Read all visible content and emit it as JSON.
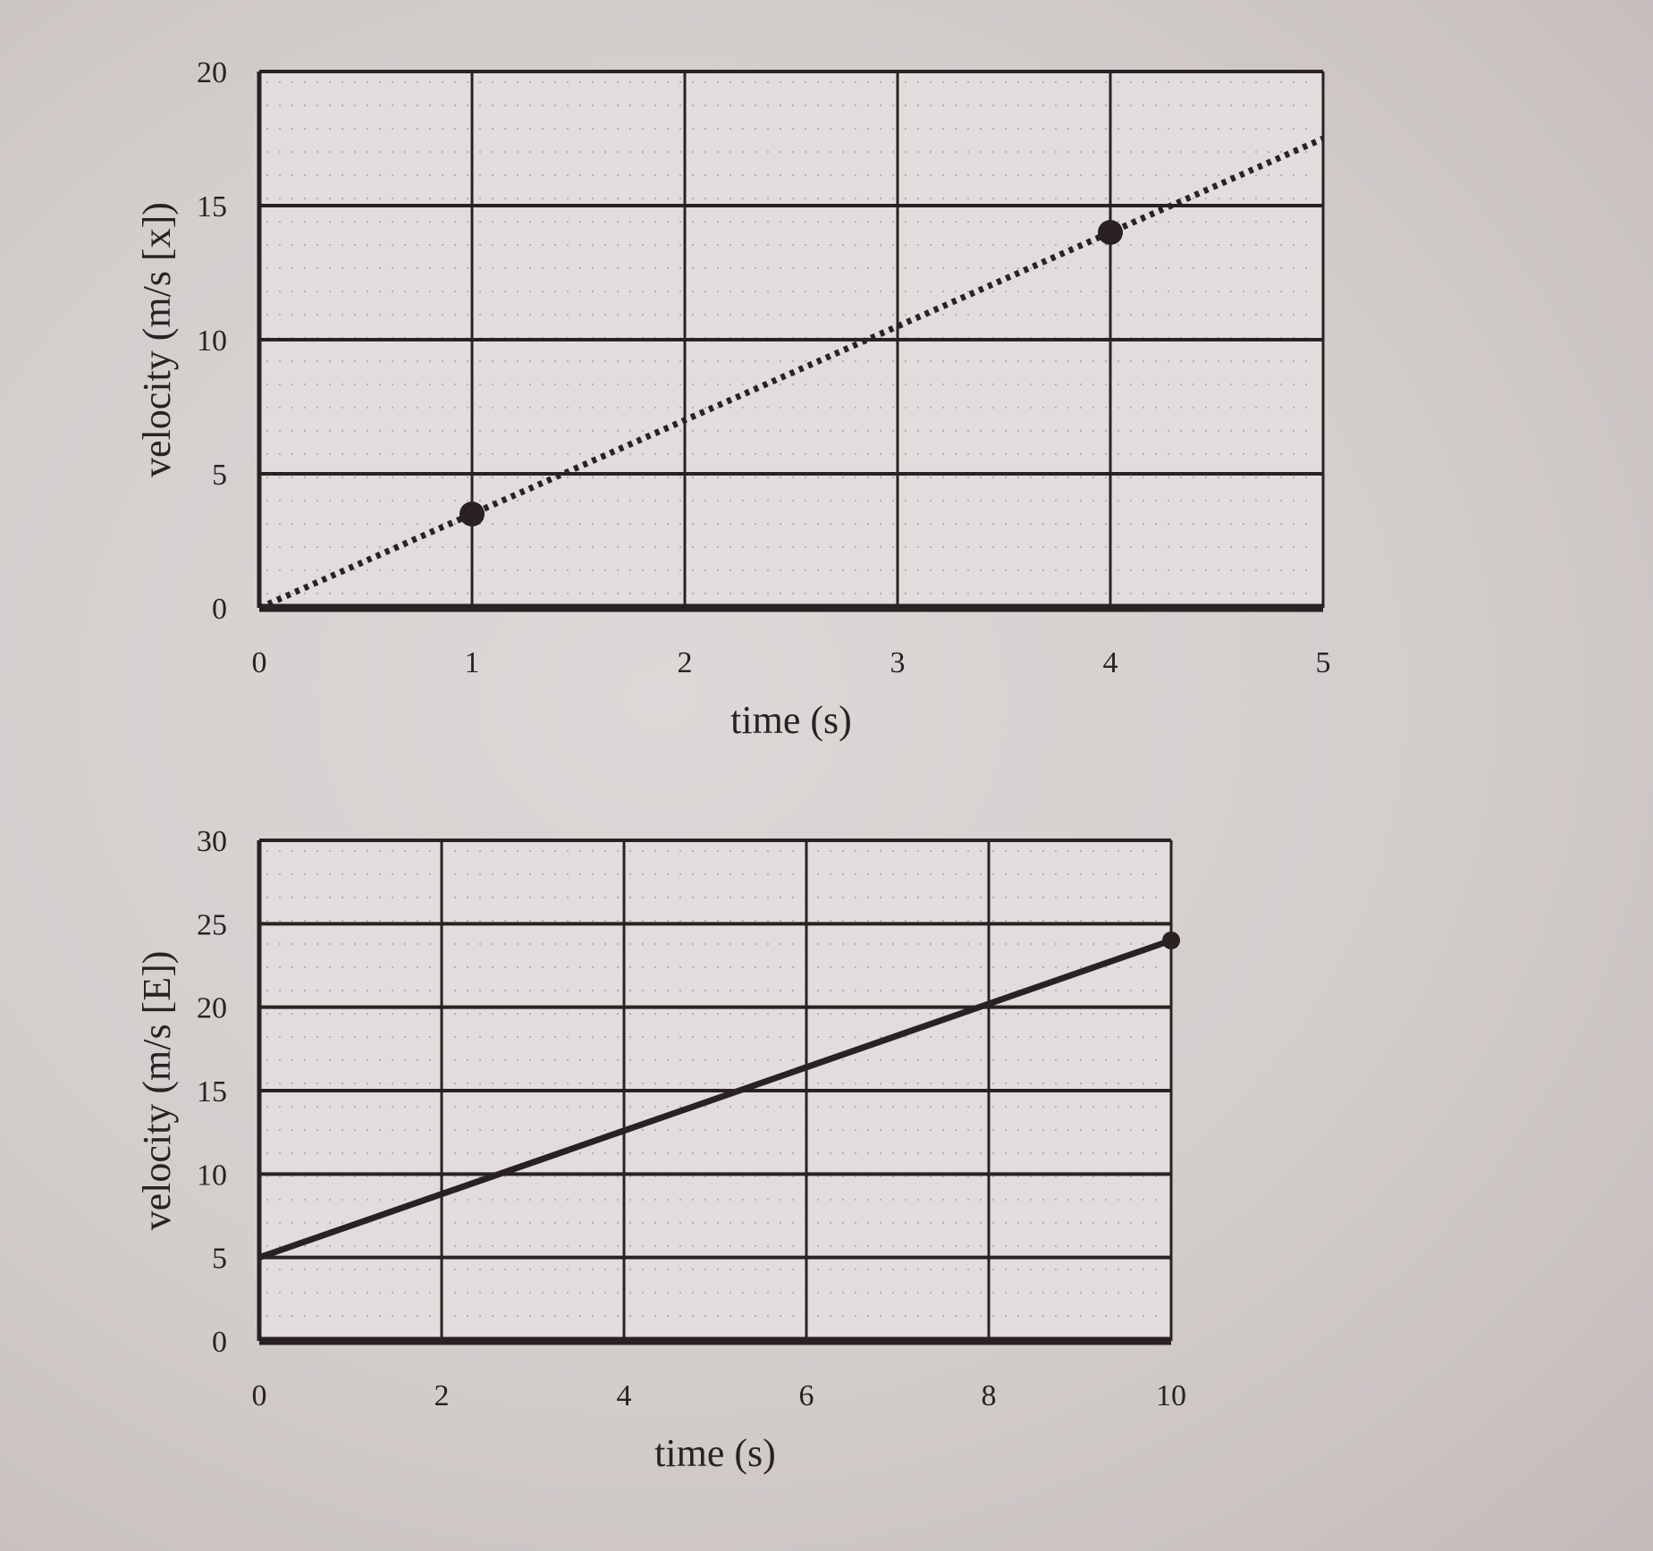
{
  "chart_data": [
    {
      "type": "line",
      "title": "",
      "xlabel": "time (s)",
      "ylabel": "velocity (m/s [x])",
      "xlim": [
        0,
        5
      ],
      "ylim": [
        0,
        20
      ],
      "x_ticks": [
        0,
        1,
        2,
        3,
        4,
        5
      ],
      "y_ticks": [
        0,
        5,
        10,
        15,
        20
      ],
      "grid": true,
      "legend": null,
      "series": [
        {
          "name": "best-fit line",
          "style": "dotted",
          "x": [
            0,
            5
          ],
          "values": [
            0,
            17.5
          ]
        },
        {
          "name": "data points",
          "style": "markers",
          "x": [
            1,
            4
          ],
          "values": [
            3.5,
            14
          ]
        }
      ]
    },
    {
      "type": "line",
      "title": "",
      "xlabel": "time (s)",
      "ylabel": "velocity (m/s [E])",
      "xlim": [
        0,
        10
      ],
      "ylim": [
        0,
        30
      ],
      "x_ticks": [
        0,
        2,
        4,
        6,
        8,
        10
      ],
      "y_ticks": [
        0,
        5,
        10,
        15,
        20,
        25,
        30
      ],
      "grid": true,
      "legend": null,
      "series": [
        {
          "name": "velocity",
          "style": "solid",
          "x": [
            0,
            10
          ],
          "values": [
            5,
            24
          ],
          "end_marker": true
        }
      ]
    }
  ],
  "colors": {
    "ink": "#2a2222",
    "paper": "#e2dddc",
    "background": "#cdc6c5"
  }
}
